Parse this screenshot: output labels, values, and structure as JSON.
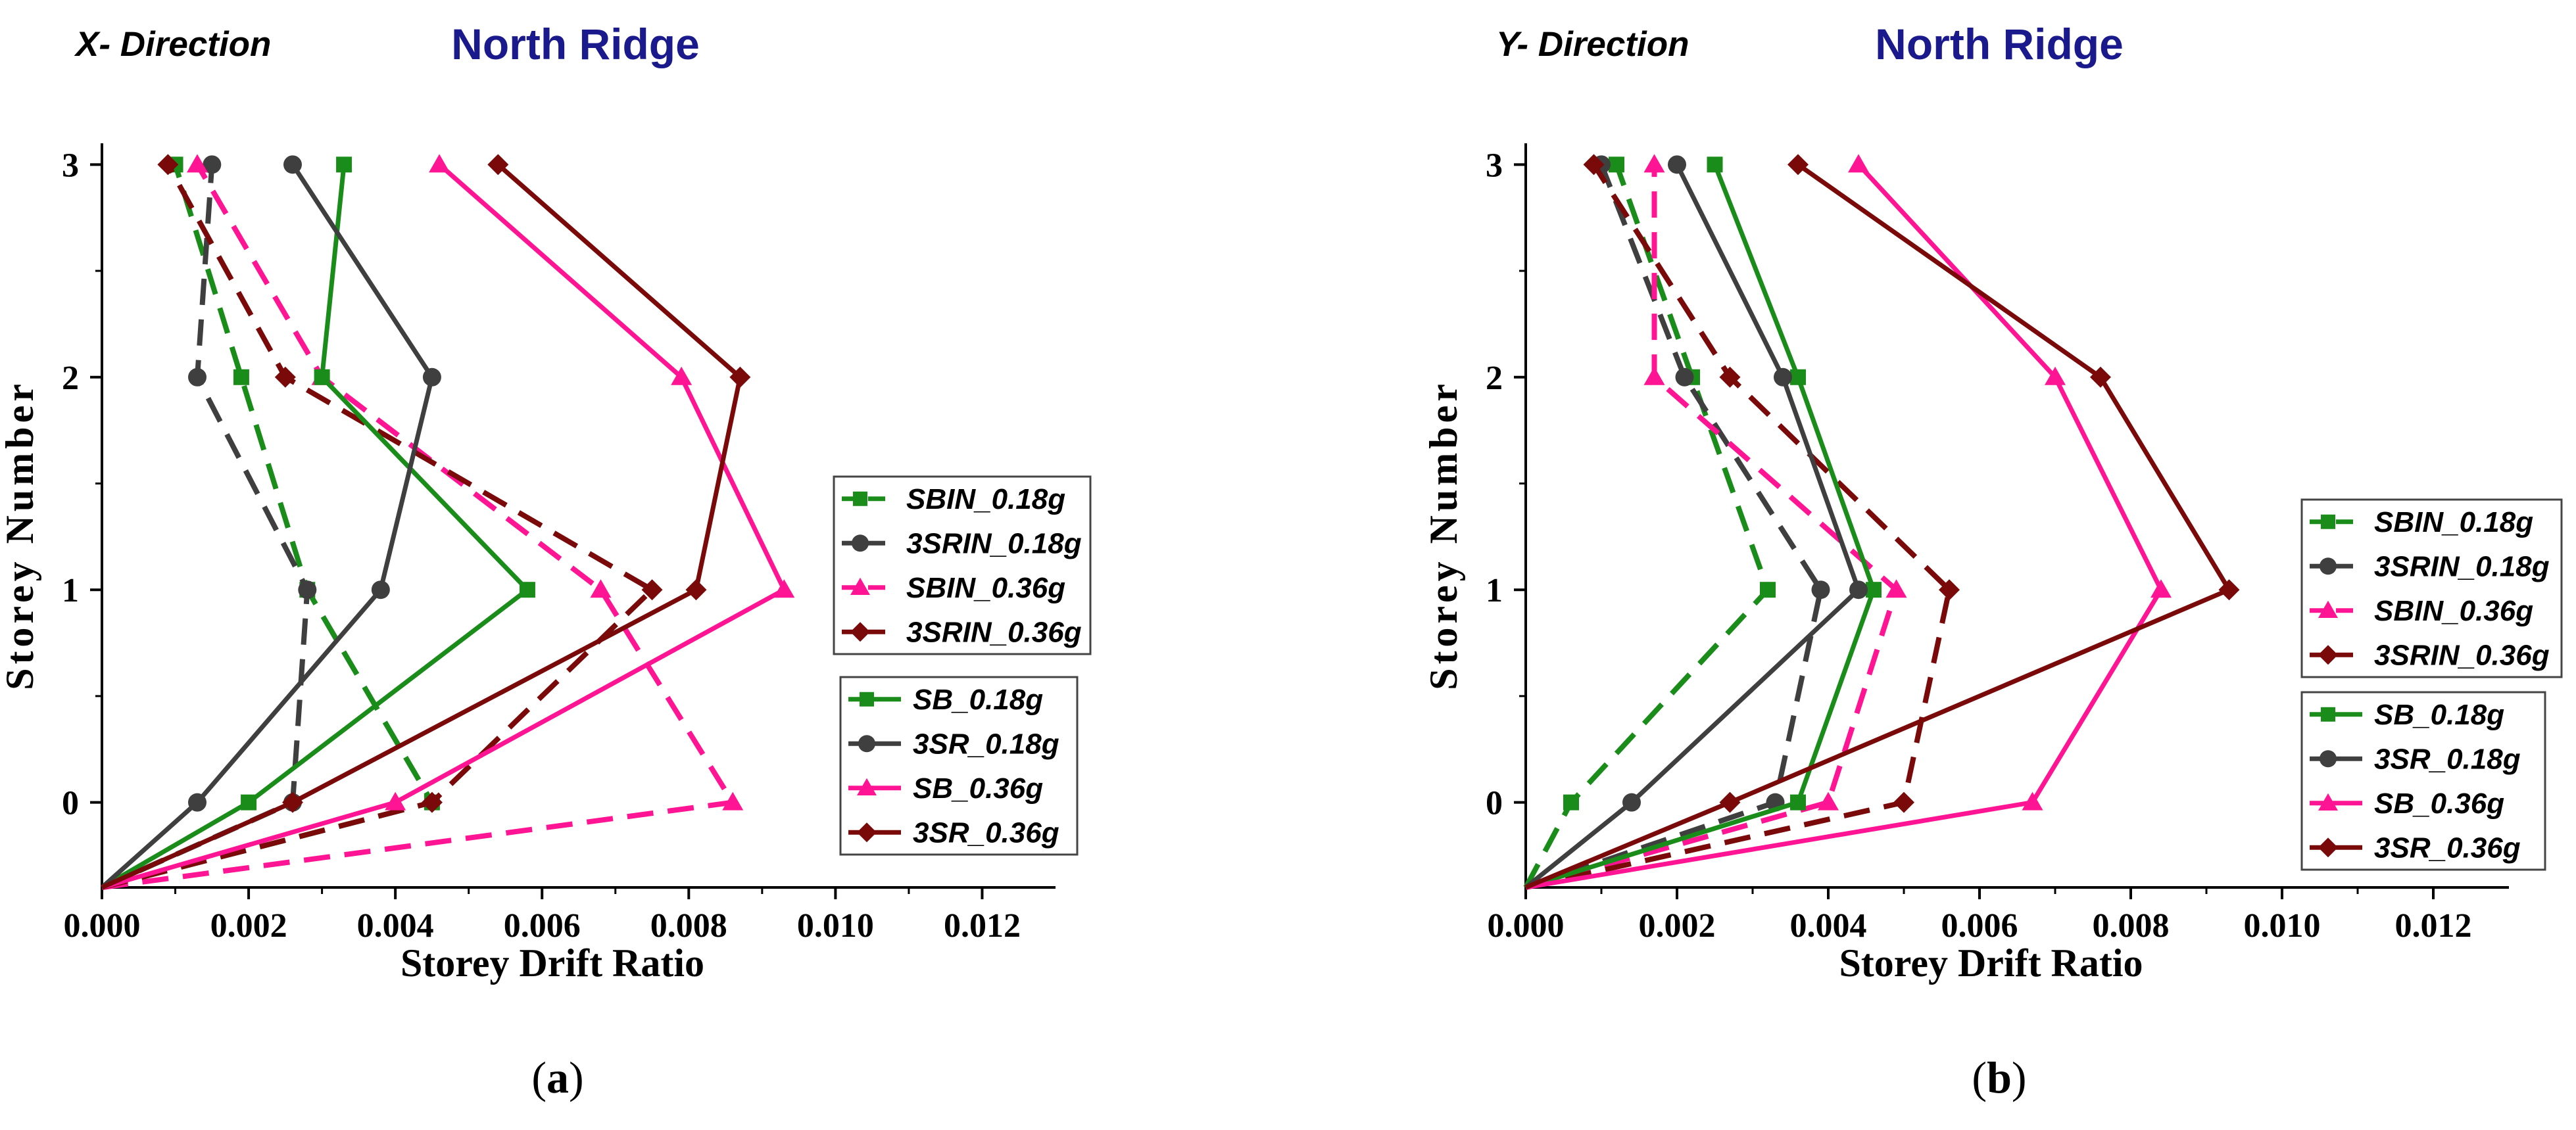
{
  "colors": {
    "green": "#1a8c1a",
    "gray": "#3f3f3f",
    "pink": "#ff1493",
    "maroon": "#7a0a0a"
  },
  "chart_data": [
    {
      "type": "line",
      "panel_label": "a",
      "direction_label": "X- Direction",
      "title": "North Ridge",
      "xlabel": "Storey Drift Ratio",
      "ylabel": "Storey Number",
      "xlim": [
        0,
        0.013
      ],
      "ylim": [
        -0.4,
        3.1
      ],
      "xticks": [
        0,
        0.002,
        0.004,
        0.006,
        0.008,
        0.01,
        0.012
      ],
      "xtick_labels": [
        "0.000",
        "0.002",
        "0.004",
        "0.006",
        "0.008",
        "0.010",
        "0.012"
      ],
      "yticks": [
        0,
        1,
        2,
        3
      ],
      "ytick_labels": [
        "0",
        "1",
        "2",
        "3"
      ],
      "legend_in": [
        {
          "name": "SBIN_0.18g",
          "color": "#1a8c1a",
          "marker": "square",
          "dash": true
        },
        {
          "name": "3SRIN_0.18g",
          "color": "#3f3f3f",
          "marker": "circle",
          "dash": true
        },
        {
          "name": "SBIN_0.36g",
          "color": "#ff1493",
          "marker": "triangle",
          "dash": true
        },
        {
          "name": "3SRIN_0.36g",
          "color": "#7a0a0a",
          "marker": "diamond",
          "dash": true
        }
      ],
      "legend_bare": [
        {
          "name": "SB_0.18g",
          "color": "#1a8c1a",
          "marker": "square",
          "dash": false
        },
        {
          "name": "3SR_0.18g",
          "color": "#3f3f3f",
          "marker": "circle",
          "dash": false
        },
        {
          "name": "SB_0.36g",
          "color": "#ff1493",
          "marker": "triangle",
          "dash": false
        },
        {
          "name": "3SR_0.36g",
          "color": "#7a0a0a",
          "marker": "diamond",
          "dash": false
        }
      ],
      "series": [
        {
          "name": "SBIN_0.18g",
          "color": "#1a8c1a",
          "marker": "square",
          "dash": true,
          "x": [
            0,
            0.0045,
            0.0028,
            0.0019,
            0.001
          ],
          "y": [
            -0.4,
            0,
            1,
            2,
            3
          ]
        },
        {
          "name": "3SRIN_0.18g",
          "color": "#3f3f3f",
          "marker": "circle",
          "dash": true,
          "x": [
            0,
            0.0026,
            0.0028,
            0.0013,
            0.0015
          ],
          "y": [
            -0.4,
            0,
            1,
            2,
            3
          ]
        },
        {
          "name": "SBIN_0.36g",
          "color": "#ff1493",
          "marker": "triangle",
          "dash": true,
          "x": [
            0,
            0.0086,
            0.0068,
            0.003,
            0.0013
          ],
          "y": [
            -0.4,
            0,
            1,
            2,
            3
          ]
        },
        {
          "name": "3SRIN_0.36g",
          "color": "#7a0a0a",
          "marker": "diamond",
          "dash": true,
          "x": [
            0,
            0.0045,
            0.0075,
            0.0025,
            0.0009
          ],
          "y": [
            -0.4,
            0,
            1,
            2,
            3
          ]
        },
        {
          "name": "SB_0.18g",
          "color": "#1a8c1a",
          "marker": "square",
          "dash": false,
          "x": [
            0,
            0.002,
            0.0058,
            0.003,
            0.0033
          ],
          "y": [
            -0.4,
            0,
            1,
            2,
            3
          ]
        },
        {
          "name": "3SR_0.18g",
          "color": "#3f3f3f",
          "marker": "circle",
          "dash": false,
          "x": [
            0,
            0.0013,
            0.0038,
            0.0045,
            0.0026
          ],
          "y": [
            -0.4,
            0,
            1,
            2,
            3
          ]
        },
        {
          "name": "SB_0.36g",
          "color": "#ff1493",
          "marker": "triangle",
          "dash": false,
          "x": [
            0,
            0.004,
            0.0093,
            0.0079,
            0.0046
          ],
          "y": [
            -0.4,
            0,
            1,
            2,
            3
          ]
        },
        {
          "name": "3SR_0.36g",
          "color": "#7a0a0a",
          "marker": "diamond",
          "dash": false,
          "x": [
            0,
            0.0026,
            0.0081,
            0.0087,
            0.0054
          ],
          "y": [
            -0.4,
            0,
            1,
            2,
            3
          ]
        }
      ]
    },
    {
      "type": "line",
      "panel_label": "b",
      "direction_label": "Y- Direction",
      "title": "North Ridge",
      "xlabel": "Storey Drift Ratio",
      "ylabel": "Storey Number",
      "xlim": [
        0,
        0.013
      ],
      "ylim": [
        -0.4,
        3.1
      ],
      "xticks": [
        0,
        0.002,
        0.004,
        0.006,
        0.008,
        0.01,
        0.012
      ],
      "xtick_labels": [
        "0.000",
        "0.002",
        "0.004",
        "0.006",
        "0.008",
        "0.010",
        "0.012"
      ],
      "yticks": [
        0,
        1,
        2,
        3
      ],
      "ytick_labels": [
        "0",
        "1",
        "2",
        "3"
      ],
      "legend_in": [
        {
          "name": "SBIN_0.18g",
          "color": "#1a8c1a",
          "marker": "square",
          "dash": true
        },
        {
          "name": "3SRIN_0.18g",
          "color": "#3f3f3f",
          "marker": "circle",
          "dash": true
        },
        {
          "name": "SBIN_0.36g",
          "color": "#ff1493",
          "marker": "triangle",
          "dash": true
        },
        {
          "name": "3SRIN_0.36g",
          "color": "#7a0a0a",
          "marker": "diamond",
          "dash": true
        }
      ],
      "legend_bare": [
        {
          "name": "SB_0.18g",
          "color": "#1a8c1a",
          "marker": "square",
          "dash": false
        },
        {
          "name": "3SR_0.18g",
          "color": "#3f3f3f",
          "marker": "circle",
          "dash": false
        },
        {
          "name": "SB_0.36g",
          "color": "#ff1493",
          "marker": "triangle",
          "dash": false
        },
        {
          "name": "3SR_0.36g",
          "color": "#7a0a0a",
          "marker": "diamond",
          "dash": false
        }
      ],
      "series": [
        {
          "name": "SBIN_0.18g",
          "color": "#1a8c1a",
          "marker": "square",
          "dash": true,
          "x": [
            0,
            0.0006,
            0.0032,
            0.0022,
            0.0012
          ],
          "y": [
            -0.4,
            0,
            1,
            2,
            3
          ]
        },
        {
          "name": "3SRIN_0.18g",
          "color": "#3f3f3f",
          "marker": "circle",
          "dash": true,
          "x": [
            0,
            0.0033,
            0.0039,
            0.0021,
            0.001
          ],
          "y": [
            -0.4,
            0,
            1,
            2,
            3
          ]
        },
        {
          "name": "SBIN_0.36g",
          "color": "#ff1493",
          "marker": "triangle",
          "dash": true,
          "x": [
            0,
            0.004,
            0.0049,
            0.0017,
            0.0017
          ],
          "y": [
            -0.4,
            0,
            1,
            2,
            3
          ]
        },
        {
          "name": "3SRIN_0.36g",
          "color": "#7a0a0a",
          "marker": "diamond",
          "dash": true,
          "x": [
            0,
            0.005,
            0.0056,
            0.0027,
            0.0009
          ],
          "y": [
            -0.4,
            0,
            1,
            2,
            3
          ]
        },
        {
          "name": "SB_0.18g",
          "color": "#1a8c1a",
          "marker": "square",
          "dash": false,
          "x": [
            0,
            0.0036,
            0.0046,
            0.0036,
            0.0025
          ],
          "y": [
            -0.4,
            0,
            1,
            2,
            3
          ]
        },
        {
          "name": "3SR_0.18g",
          "color": "#3f3f3f",
          "marker": "circle",
          "dash": false,
          "x": [
            0,
            0.0014,
            0.0044,
            0.0034,
            0.002
          ],
          "y": [
            -0.4,
            0,
            1,
            2,
            3
          ]
        },
        {
          "name": "SB_0.36g",
          "color": "#ff1493",
          "marker": "triangle",
          "dash": false,
          "x": [
            0,
            0.0067,
            0.0084,
            0.007,
            0.0044
          ],
          "y": [
            -0.4,
            0,
            1,
            2,
            3
          ]
        },
        {
          "name": "3SR_0.36g",
          "color": "#7a0a0a",
          "marker": "diamond",
          "dash": false,
          "x": [
            0,
            0.0027,
            0.0093,
            0.0076,
            0.0036
          ],
          "y": [
            -0.4,
            0,
            1,
            2,
            3
          ]
        }
      ]
    }
  ]
}
